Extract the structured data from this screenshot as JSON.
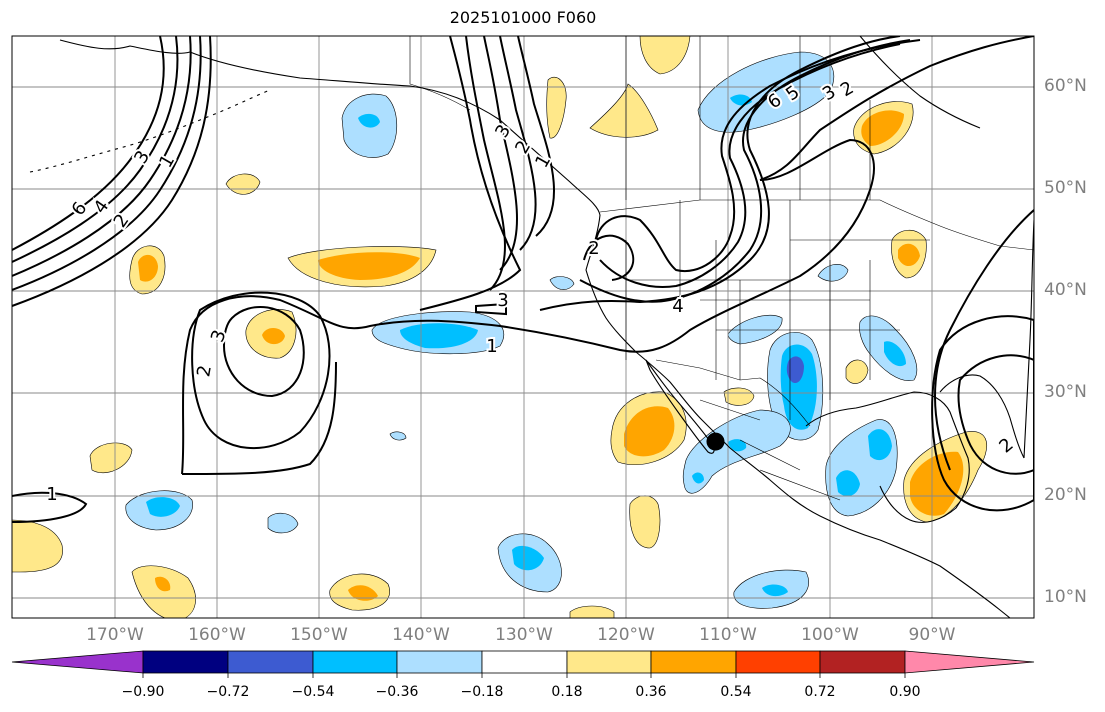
{
  "title": "2025101000 F060",
  "lon_ticks": [
    "170°W",
    "160°W",
    "150°W",
    "140°W",
    "130°W",
    "120°W",
    "110°W",
    "100°W",
    "90°W"
  ],
  "lat_ticks": [
    "60°N",
    "50°N",
    "40°N",
    "30°N",
    "20°N",
    "10°N"
  ],
  "colorbar": {
    "colors": [
      "#9932CC",
      "#000080",
      "#3D5BD1",
      "#00BFFF",
      "#ADDFFF",
      "#FFFFFF",
      "#FFE88A",
      "#FFA500",
      "#FF4000",
      "#B22222",
      "#FF88AA"
    ],
    "labels": [
      "−0.90",
      "−0.72",
      "−0.54",
      "−0.36",
      "−0.18",
      "0.18",
      "0.36",
      "0.54",
      "0.72",
      "0.90"
    ]
  },
  "contour_labels": [
    "1",
    "2",
    "3",
    "4",
    "6",
    "3",
    "2",
    "1",
    "6",
    "5",
    "3",
    "2",
    "2",
    "3",
    "4",
    "2",
    "1",
    "3",
    "2",
    "1"
  ],
  "marker": {
    "name": "storm-center",
    "lat": 25.3,
    "lon": -111.2
  }
}
